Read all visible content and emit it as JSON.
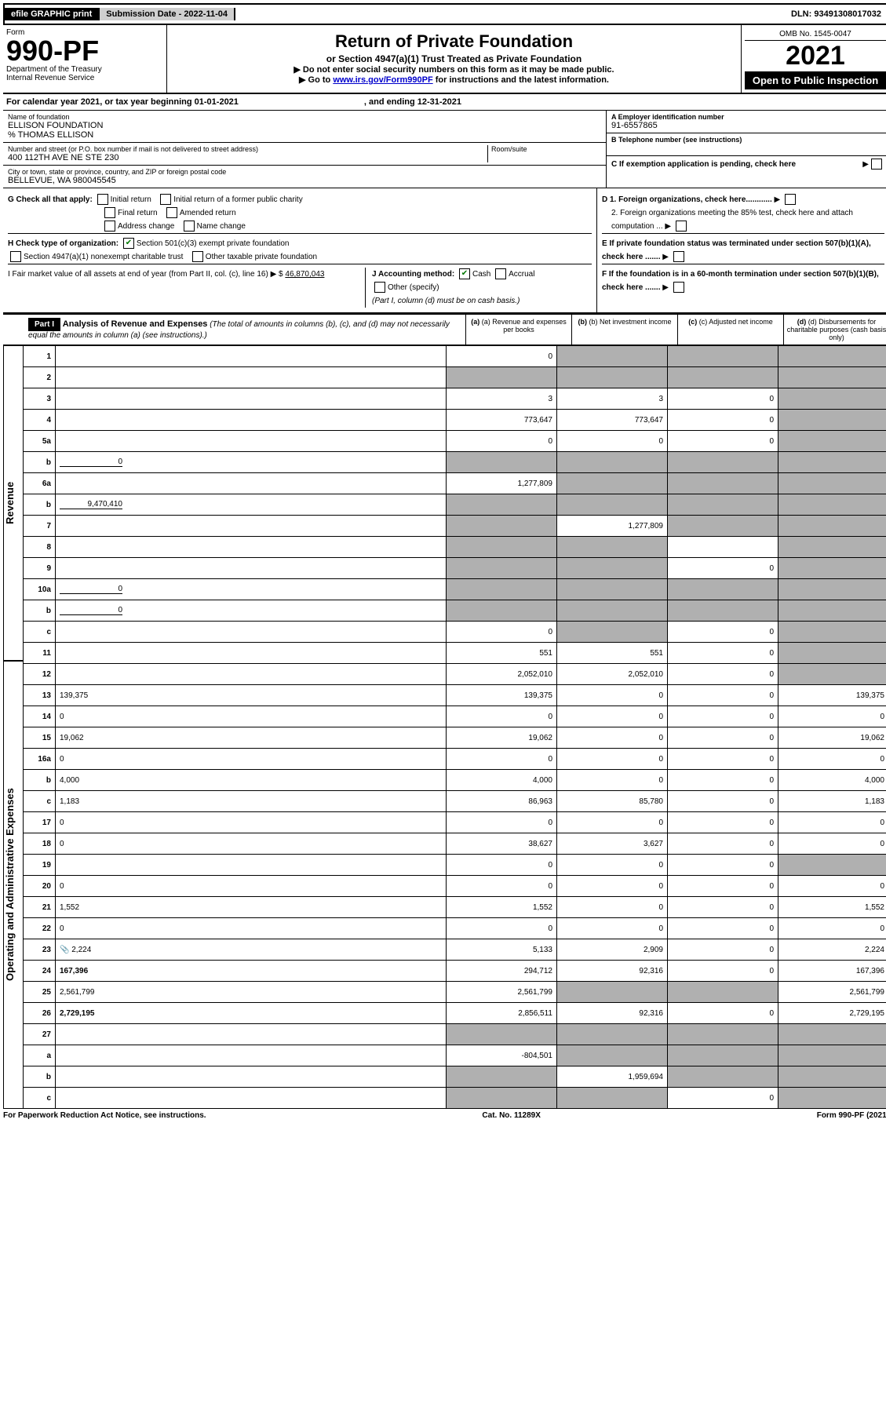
{
  "top": {
    "efile": "efile GRAPHIC print",
    "submission": "Submission Date - 2022-11-04",
    "dln": "DLN: 93491308017032"
  },
  "header": {
    "form_label": "Form",
    "form_number": "990-PF",
    "dept": "Department of the Treasury",
    "irs": "Internal Revenue Service",
    "title": "Return of Private Foundation",
    "subtitle": "or Section 4947(a)(1) Trust Treated as Private Foundation",
    "note1": "Do not enter social security numbers on this form as it may be made public.",
    "note2_pre": "Go to ",
    "note2_link": "www.irs.gov/Form990PF",
    "note2_post": " for instructions and the latest information.",
    "omb": "OMB No. 1545-0047",
    "year": "2021",
    "open": "Open to Public Inspection"
  },
  "calendar": {
    "text": "For calendar year 2021, or tax year beginning 01-01-2021",
    "ending": ", and ending 12-31-2021"
  },
  "entity": {
    "name_lab": "Name of foundation",
    "name": "ELLISON FOUNDATION",
    "care_of": "% THOMAS ELLISON",
    "addr_lab": "Number and street (or P.O. box number if mail is not delivered to street address)",
    "addr": "400 112TH AVE NE STE 230",
    "room_lab": "Room/suite",
    "city_lab": "City or town, state or province, country, and ZIP or foreign postal code",
    "city": "BELLEVUE, WA  980045545",
    "ein_lab": "A Employer identification number",
    "ein": "91-6557865",
    "phone_lab": "B Telephone number (see instructions)",
    "c_lab": "C If exemption application is pending, check here"
  },
  "checks": {
    "g_label": "G Check all that apply:",
    "g_opts": [
      "Initial return",
      "Initial return of a former public charity",
      "Final return",
      "Amended return",
      "Address change",
      "Name change"
    ],
    "h_label": "H Check type of organization:",
    "h_501c3": "Section 501(c)(3) exempt private foundation",
    "h_4947": "Section 4947(a)(1) nonexempt charitable trust",
    "h_other": "Other taxable private foundation",
    "i_label": "I Fair market value of all assets at end of year (from Part II, col. (c), line 16) ▶ $",
    "i_value": "46,870,043",
    "j_label": "J Accounting method:",
    "j_cash": "Cash",
    "j_accrual": "Accrual",
    "j_other": "Other (specify)",
    "j_note": "(Part I, column (d) must be on cash basis.)",
    "d1": "D 1. Foreign organizations, check here............",
    "d2": "2. Foreign organizations meeting the 85% test, check here and attach computation ...",
    "e": "E  If private foundation status was terminated under section 507(b)(1)(A), check here .......",
    "f": "F  If the foundation is in a 60-month termination under section 507(b)(1)(B), check here .......",
    "arrow": "▶"
  },
  "part1": {
    "label": "Part I",
    "title": "Analysis of Revenue and Expenses",
    "title_note": " (The total of amounts in columns (b), (c), and (d) may not necessarily equal the amounts in column (a) (see instructions).)",
    "col_a": "(a) Revenue and expenses per books",
    "col_b": "(b) Net investment income",
    "col_c": "(c) Adjusted net income",
    "col_d": "(d) Disbursements for charitable purposes (cash basis only)"
  },
  "side": {
    "revenue": "Revenue",
    "expenses": "Operating and Administrative Expenses"
  },
  "lines": [
    {
      "n": "1",
      "d": "",
      "a": "0",
      "b": "",
      "c": "",
      "sb": true,
      "sc": true,
      "sd": true
    },
    {
      "n": "2",
      "d": "",
      "a": "",
      "b": "",
      "c": "",
      "sa": true,
      "sb": true,
      "sc": true,
      "sd": true,
      "bold_not": true
    },
    {
      "n": "3",
      "d": "",
      "a": "3",
      "b": "3",
      "c": "0",
      "sd": true
    },
    {
      "n": "4",
      "d": "",
      "a": "773,647",
      "b": "773,647",
      "c": "0",
      "sd": true
    },
    {
      "n": "5a",
      "d": "",
      "a": "0",
      "b": "0",
      "c": "0",
      "sd": true
    },
    {
      "n": "b",
      "d": "",
      "inline": "0",
      "a": "",
      "b": "",
      "c": "",
      "sa": true,
      "sb": true,
      "sc": true,
      "sd": true
    },
    {
      "n": "6a",
      "d": "",
      "a": "1,277,809",
      "b": "",
      "c": "",
      "sb": true,
      "sc": true,
      "sd": true
    },
    {
      "n": "b",
      "d": "",
      "inline": "9,470,410",
      "a": "",
      "b": "",
      "c": "",
      "sa": true,
      "sb": true,
      "sc": true,
      "sd": true
    },
    {
      "n": "7",
      "d": "",
      "a": "",
      "b": "1,277,809",
      "c": "",
      "sa": true,
      "sc": true,
      "sd": true
    },
    {
      "n": "8",
      "d": "",
      "a": "",
      "b": "",
      "c": "",
      "sa": true,
      "sb": true,
      "sd": true
    },
    {
      "n": "9",
      "d": "",
      "a": "",
      "b": "",
      "c": "0",
      "sa": true,
      "sb": true,
      "sd": true
    },
    {
      "n": "10a",
      "d": "",
      "inline": "0",
      "a": "",
      "b": "",
      "c": "",
      "sa": true,
      "sb": true,
      "sc": true,
      "sd": true
    },
    {
      "n": "b",
      "d": "",
      "inline": "0",
      "a": "",
      "b": "",
      "c": "",
      "sa": true,
      "sb": true,
      "sc": true,
      "sd": true
    },
    {
      "n": "c",
      "d": "",
      "a": "0",
      "b": "",
      "c": "0",
      "sb": true,
      "sd": true
    },
    {
      "n": "11",
      "d": "",
      "a": "551",
      "b": "551",
      "c": "0",
      "sd": true
    },
    {
      "n": "12",
      "d": "",
      "a": "2,052,010",
      "b": "2,052,010",
      "c": "0",
      "sd": true,
      "bold": true
    },
    {
      "n": "13",
      "d": "139,375",
      "a": "139,375",
      "b": "0",
      "c": "0"
    },
    {
      "n": "14",
      "d": "0",
      "a": "0",
      "b": "0",
      "c": "0"
    },
    {
      "n": "15",
      "d": "19,062",
      "a": "19,062",
      "b": "0",
      "c": "0"
    },
    {
      "n": "16a",
      "d": "0",
      "a": "0",
      "b": "0",
      "c": "0"
    },
    {
      "n": "b",
      "d": "4,000",
      "a": "4,000",
      "b": "0",
      "c": "0"
    },
    {
      "n": "c",
      "d": "1,183",
      "a": "86,963",
      "b": "85,780",
      "c": "0"
    },
    {
      "n": "17",
      "d": "0",
      "a": "0",
      "b": "0",
      "c": "0"
    },
    {
      "n": "18",
      "d": "0",
      "a": "38,627",
      "b": "3,627",
      "c": "0"
    },
    {
      "n": "19",
      "d": "",
      "a": "0",
      "b": "0",
      "c": "0",
      "sd": true
    },
    {
      "n": "20",
      "d": "0",
      "a": "0",
      "b": "0",
      "c": "0"
    },
    {
      "n": "21",
      "d": "1,552",
      "a": "1,552",
      "b": "0",
      "c": "0"
    },
    {
      "n": "22",
      "d": "0",
      "a": "0",
      "b": "0",
      "c": "0"
    },
    {
      "n": "23",
      "d": "2,224",
      "a": "5,133",
      "b": "2,909",
      "c": "0",
      "icon": true
    },
    {
      "n": "24",
      "d": "167,396",
      "a": "294,712",
      "b": "92,316",
      "c": "0",
      "bold": true
    },
    {
      "n": "25",
      "d": "2,561,799",
      "a": "2,561,799",
      "b": "",
      "c": "",
      "sb": true,
      "sc": true
    },
    {
      "n": "26",
      "d": "2,729,195",
      "a": "2,856,511",
      "b": "92,316",
      "c": "0",
      "bold": true
    },
    {
      "n": "27",
      "d": "",
      "a": "",
      "b": "",
      "c": "",
      "sa": true,
      "sb": true,
      "sc": true,
      "sd": true
    },
    {
      "n": "a",
      "d": "",
      "a": "-804,501",
      "b": "",
      "c": "",
      "sb": true,
      "sc": true,
      "sd": true,
      "bold": true
    },
    {
      "n": "b",
      "d": "",
      "a": "",
      "b": "1,959,694",
      "c": "",
      "sa": true,
      "sc": true,
      "sd": true,
      "bold": true
    },
    {
      "n": "c",
      "d": "",
      "a": "",
      "b": "",
      "c": "0",
      "sa": true,
      "sb": true,
      "sd": true,
      "bold": true
    }
  ],
  "footer": {
    "left": "For Paperwork Reduction Act Notice, see instructions.",
    "center": "Cat. No. 11289X",
    "right": "Form 990-PF (2021)"
  }
}
